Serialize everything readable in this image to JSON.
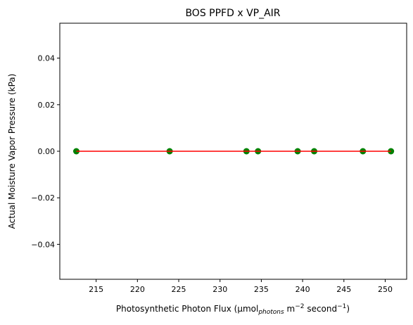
{
  "chart_data": {
    "type": "scatter",
    "title": "BOS PPFD x VP_AIR",
    "xlabel": {
      "prefix": "Photosynthetic Photon Flux (µmol",
      "subscript": "photons",
      "middle": " m",
      "sup1": "−2",
      "tail": " second",
      "sup2": "−1",
      "end": ")"
    },
    "ylabel": "Actual Moisture Vapor Pressure (kPa)",
    "xlim": [
      210.6,
      252.6
    ],
    "ylim": [
      -0.055,
      0.055
    ],
    "xticks": [
      215,
      220,
      225,
      230,
      235,
      240,
      245,
      250
    ],
    "xtick_labels": [
      "215",
      "220",
      "225",
      "230",
      "235",
      "240",
      "245",
      "250"
    ],
    "yticks": [
      -0.04,
      -0.02,
      0.0,
      0.02,
      0.04
    ],
    "ytick_labels": [
      "−0.04",
      "−0.02",
      "0.00",
      "0.02",
      "0.04"
    ],
    "grid": false,
    "series": [
      {
        "type": "scatter",
        "x": [
          212.6,
          223.9,
          233.2,
          234.6,
          239.4,
          241.4,
          247.3,
          250.7
        ],
        "y": [
          0,
          0,
          0,
          0,
          0,
          0,
          0,
          0
        ],
        "color": "#008000"
      },
      {
        "type": "line",
        "x": [
          212.6,
          250.7
        ],
        "y": [
          0,
          0
        ],
        "color": "#ff0000"
      }
    ]
  }
}
